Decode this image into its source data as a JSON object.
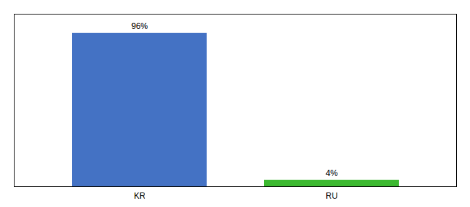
{
  "chart_data": {
    "type": "bar",
    "categories": [
      "KR",
      "RU"
    ],
    "values": [
      96,
      4
    ],
    "value_labels": [
      "96%",
      "4%"
    ],
    "colors": [
      "#4472c4",
      "#3cb930"
    ],
    "ylim": [
      0,
      108
    ],
    "data_labels": true,
    "tick_labels": "x"
  }
}
